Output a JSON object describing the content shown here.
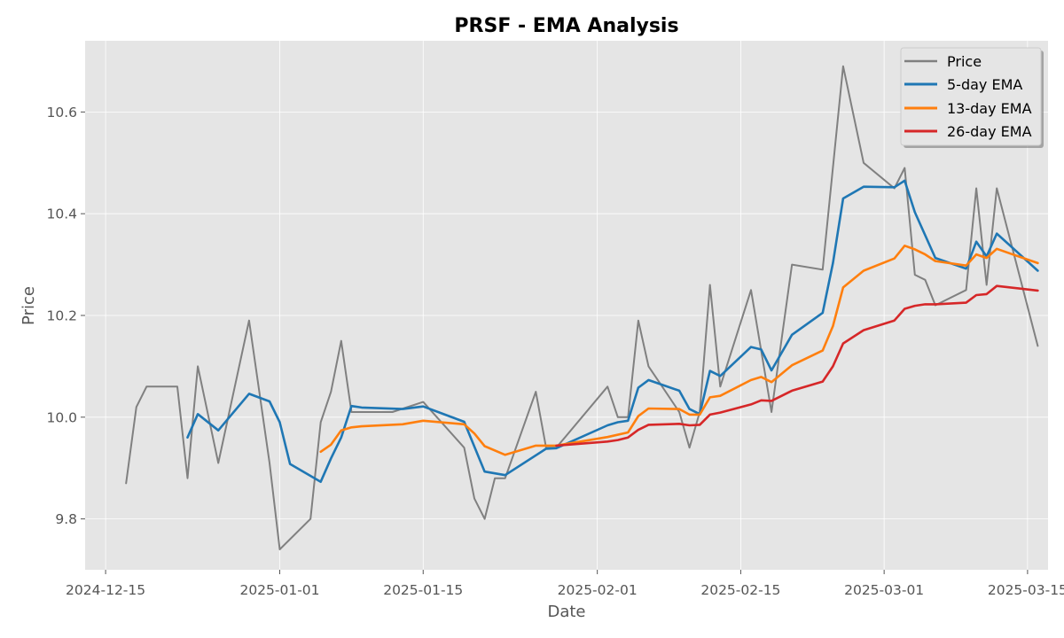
{
  "chart_data": {
    "type": "line",
    "title": "PRSF - EMA Analysis",
    "xlabel": "Date",
    "ylabel": "Price",
    "xlim": [
      "2024-12-13",
      "2025-03-17"
    ],
    "ylim": [
      9.7,
      10.74
    ],
    "x_ticks": [
      "2024-12-15",
      "2025-01-01",
      "2025-01-15",
      "2025-02-01",
      "2025-02-15",
      "2025-03-01",
      "2025-03-15"
    ],
    "y_ticks": [
      9.8,
      10.0,
      10.2,
      10.4,
      10.6
    ],
    "y_tick_labels": [
      "9.8",
      "10.0",
      "10.2",
      "10.4",
      "10.6"
    ],
    "grid": true,
    "legend_position": "top-right",
    "colors": {
      "background": "#e5e5e5",
      "grid": "#ffffff",
      "price": "#808080",
      "ema5": "#1f77b4",
      "ema13": "#ff7f0e",
      "ema26": "#d62728"
    },
    "series": [
      {
        "name": "Price",
        "color": "#808080",
        "points": [
          [
            "2024-12-17",
            9.87
          ],
          [
            "2024-12-18",
            10.02
          ],
          [
            "2024-12-19",
            10.06
          ],
          [
            "2024-12-22",
            10.06
          ],
          [
            "2024-12-23",
            9.88
          ],
          [
            "2024-12-24",
            10.1
          ],
          [
            "2024-12-26",
            9.91
          ],
          [
            "2024-12-29",
            10.19
          ],
          [
            "2024-12-31",
            9.91
          ],
          [
            "2025-01-01",
            9.74
          ],
          [
            "2025-01-04",
            9.8
          ],
          [
            "2025-01-05",
            9.99
          ],
          [
            "2025-01-06",
            10.05
          ],
          [
            "2025-01-07",
            10.15
          ],
          [
            "2025-01-08",
            10.01
          ],
          [
            "2025-01-12",
            10.01
          ],
          [
            "2025-01-15",
            10.03
          ],
          [
            "2025-01-19",
            9.94
          ],
          [
            "2025-01-20",
            9.84
          ],
          [
            "2025-01-21",
            9.8
          ],
          [
            "2025-01-22",
            9.88
          ],
          [
            "2025-01-23",
            9.88
          ],
          [
            "2025-01-26",
            10.05
          ],
          [
            "2025-01-27",
            9.94
          ],
          [
            "2025-01-28",
            9.94
          ],
          [
            "2025-02-02",
            10.06
          ],
          [
            "2025-02-03",
            10.0
          ],
          [
            "2025-02-04",
            10.0
          ],
          [
            "2025-02-05",
            10.19
          ],
          [
            "2025-02-06",
            10.1
          ],
          [
            "2025-02-07",
            10.07
          ],
          [
            "2025-02-09",
            10.01
          ],
          [
            "2025-02-10",
            9.94
          ],
          [
            "2025-02-11",
            10.01
          ],
          [
            "2025-02-12",
            10.26
          ],
          [
            "2025-02-13",
            10.06
          ],
          [
            "2025-02-16",
            10.25
          ],
          [
            "2025-02-18",
            10.01
          ],
          [
            "2025-02-20",
            10.3
          ],
          [
            "2025-02-23",
            10.29
          ],
          [
            "2025-02-25",
            10.69
          ],
          [
            "2025-02-27",
            10.5
          ],
          [
            "2025-03-02",
            10.45
          ],
          [
            "2025-03-03",
            10.49
          ],
          [
            "2025-03-04",
            10.28
          ],
          [
            "2025-03-05",
            10.27
          ],
          [
            "2025-03-06",
            10.22
          ],
          [
            "2025-03-09",
            10.25
          ],
          [
            "2025-03-10",
            10.45
          ],
          [
            "2025-03-11",
            10.26
          ],
          [
            "2025-03-12",
            10.45
          ],
          [
            "2025-03-16",
            10.14
          ]
        ]
      },
      {
        "name": "5-day EMA",
        "color": "#1f77b4",
        "points": [
          [
            "2024-12-23",
            9.96
          ],
          [
            "2024-12-24",
            10.006
          ],
          [
            "2024-12-26",
            9.974
          ],
          [
            "2024-12-29",
            10.046
          ],
          [
            "2024-12-31",
            10.031
          ],
          [
            "2025-01-01",
            9.99
          ],
          [
            "2025-01-02",
            9.908
          ],
          [
            "2025-01-05",
            9.873
          ],
          [
            "2025-01-06",
            9.919
          ],
          [
            "2025-01-07",
            9.96
          ],
          [
            "2025-01-08",
            10.022
          ],
          [
            "2025-01-09",
            10.019
          ],
          [
            "2025-01-13",
            10.016
          ],
          [
            "2025-01-15",
            10.021
          ],
          [
            "2025-01-19",
            9.991
          ],
          [
            "2025-01-21",
            9.893
          ],
          [
            "2025-01-23",
            9.886
          ],
          [
            "2025-01-27",
            9.938
          ],
          [
            "2025-01-28",
            9.939
          ],
          [
            "2025-02-02",
            9.984
          ],
          [
            "2025-02-03",
            9.99
          ],
          [
            "2025-02-04",
            9.993
          ],
          [
            "2025-02-05",
            10.058
          ],
          [
            "2025-02-06",
            10.073
          ],
          [
            "2025-02-09",
            10.052
          ],
          [
            "2025-02-10",
            10.016
          ],
          [
            "2025-02-11",
            10.006
          ],
          [
            "2025-02-12",
            10.091
          ],
          [
            "2025-02-13",
            10.081
          ],
          [
            "2025-02-16",
            10.138
          ],
          [
            "2025-02-17",
            10.133
          ],
          [
            "2025-02-18",
            10.092
          ],
          [
            "2025-02-20",
            10.162
          ],
          [
            "2025-02-23",
            10.205
          ],
          [
            "2025-02-24",
            10.303
          ],
          [
            "2025-02-25",
            10.43
          ],
          [
            "2025-02-27",
            10.453
          ],
          [
            "2025-03-02",
            10.452
          ],
          [
            "2025-03-03",
            10.465
          ],
          [
            "2025-03-04",
            10.403
          ],
          [
            "2025-03-06",
            10.313
          ],
          [
            "2025-03-09",
            10.292
          ],
          [
            "2025-03-10",
            10.345
          ],
          [
            "2025-03-11",
            10.316
          ],
          [
            "2025-03-12",
            10.361
          ],
          [
            "2025-03-16",
            10.288
          ]
        ]
      },
      {
        "name": "13-day EMA",
        "color": "#ff7f0e",
        "points": [
          [
            "2025-01-05",
            9.932
          ],
          [
            "2025-01-06",
            9.946
          ],
          [
            "2025-01-07",
            9.974
          ],
          [
            "2025-01-08",
            9.98
          ],
          [
            "2025-01-09",
            9.982
          ],
          [
            "2025-01-13",
            9.986
          ],
          [
            "2025-01-15",
            9.993
          ],
          [
            "2025-01-19",
            9.986
          ],
          [
            "2025-01-20",
            9.968
          ],
          [
            "2025-01-21",
            9.943
          ],
          [
            "2025-01-23",
            9.926
          ],
          [
            "2025-01-26",
            9.944
          ],
          [
            "2025-01-28",
            9.944
          ],
          [
            "2025-02-02",
            9.961
          ],
          [
            "2025-02-04",
            9.97
          ],
          [
            "2025-02-05",
            10.002
          ],
          [
            "2025-02-06",
            10.017
          ],
          [
            "2025-02-09",
            10.016
          ],
          [
            "2025-02-10",
            10.005
          ],
          [
            "2025-02-11",
            10.005
          ],
          [
            "2025-02-12",
            10.039
          ],
          [
            "2025-02-13",
            10.042
          ],
          [
            "2025-02-16",
            10.073
          ],
          [
            "2025-02-17",
            10.079
          ],
          [
            "2025-02-18",
            10.069
          ],
          [
            "2025-02-20",
            10.102
          ],
          [
            "2025-02-23",
            10.131
          ],
          [
            "2025-02-24",
            10.179
          ],
          [
            "2025-02-25",
            10.255
          ],
          [
            "2025-02-27",
            10.288
          ],
          [
            "2025-03-02",
            10.312
          ],
          [
            "2025-03-03",
            10.337
          ],
          [
            "2025-03-04",
            10.33
          ],
          [
            "2025-03-05",
            10.32
          ],
          [
            "2025-03-06",
            10.307
          ],
          [
            "2025-03-09",
            10.298
          ],
          [
            "2025-03-10",
            10.32
          ],
          [
            "2025-03-11",
            10.313
          ],
          [
            "2025-03-12",
            10.331
          ],
          [
            "2025-03-16",
            10.303
          ]
        ]
      },
      {
        "name": "26-day EMA",
        "color": "#d62728",
        "points": [
          [
            "2025-01-28",
            9.944
          ],
          [
            "2025-02-02",
            9.952
          ],
          [
            "2025-02-03",
            9.955
          ],
          [
            "2025-02-04",
            9.96
          ],
          [
            "2025-02-05",
            9.975
          ],
          [
            "2025-02-06",
            9.985
          ],
          [
            "2025-02-09",
            9.987
          ],
          [
            "2025-02-10",
            9.984
          ],
          [
            "2025-02-11",
            9.985
          ],
          [
            "2025-02-12",
            10.005
          ],
          [
            "2025-02-13",
            10.009
          ],
          [
            "2025-02-16",
            10.025
          ],
          [
            "2025-02-17",
            10.033
          ],
          [
            "2025-02-18",
            10.032
          ],
          [
            "2025-02-20",
            10.052
          ],
          [
            "2025-02-23",
            10.07
          ],
          [
            "2025-02-24",
            10.1
          ],
          [
            "2025-02-25",
            10.145
          ],
          [
            "2025-02-27",
            10.171
          ],
          [
            "2025-03-02",
            10.19
          ],
          [
            "2025-03-03",
            10.213
          ],
          [
            "2025-03-04",
            10.219
          ],
          [
            "2025-03-05",
            10.222
          ],
          [
            "2025-03-06",
            10.222
          ],
          [
            "2025-03-09",
            10.225
          ],
          [
            "2025-03-10",
            10.24
          ],
          [
            "2025-03-11",
            10.242
          ],
          [
            "2025-03-12",
            10.258
          ],
          [
            "2025-03-16",
            10.249
          ]
        ]
      }
    ]
  }
}
